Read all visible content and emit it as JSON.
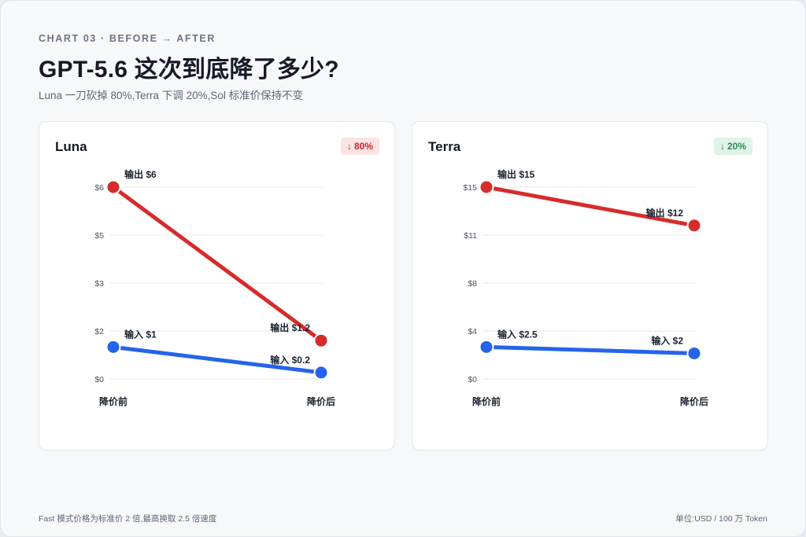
{
  "header": {
    "eyebrow": "CHART 03 · BEFORE → AFTER",
    "title": "GPT-5.6 这次到底降了多少?",
    "subtitle": "Luna 一刀砍掉 80%,Terra 下调 20%,Sol 标准价保持不变"
  },
  "footer": {
    "note": "Fast 模式价格为标准价 2 倍,最高换取 2.5 倍速度",
    "unit": "单位:USD / 100 万 Token"
  },
  "colors": {
    "output": "#d62c2c",
    "input": "#2563eb",
    "grid": "#e6e8ec"
  },
  "chart_data": [
    {
      "type": "line",
      "title": "Luna",
      "badge": {
        "arrow": "↓",
        "text": "80%",
        "tone": "red"
      },
      "categories": [
        "降价前",
        "降价后"
      ],
      "ticks": [
        0,
        2,
        3,
        5,
        6
      ],
      "tick_labels": [
        "$0",
        "$2",
        "$3",
        "$5",
        "$6"
      ],
      "ylim": [
        0,
        6
      ],
      "series": [
        {
          "name": "输出",
          "values": [
            6,
            1.2
          ],
          "labels": [
            "输出 $6",
            "输出 $1.2"
          ],
          "color_key": "output"
        },
        {
          "name": "输入",
          "values": [
            1,
            0.2
          ],
          "labels": [
            "输入 $1",
            "输入 $0.2"
          ],
          "color_key": "input"
        }
      ]
    },
    {
      "type": "line",
      "title": "Terra",
      "badge": {
        "arrow": "↓",
        "text": "20%",
        "tone": "green"
      },
      "categories": [
        "降价前",
        "降价后"
      ],
      "ticks": [
        0,
        4,
        8,
        11,
        15
      ],
      "tick_labels": [
        "$0",
        "$4",
        "$8",
        "$11",
        "$15"
      ],
      "ylim": [
        0,
        15
      ],
      "series": [
        {
          "name": "输出",
          "values": [
            15,
            12
          ],
          "labels": [
            "输出 $15",
            "输出 $12"
          ],
          "color_key": "output"
        },
        {
          "name": "输入",
          "values": [
            2.5,
            2
          ],
          "labels": [
            "输入 $2.5",
            "输入 $2"
          ],
          "color_key": "input"
        }
      ]
    }
  ]
}
